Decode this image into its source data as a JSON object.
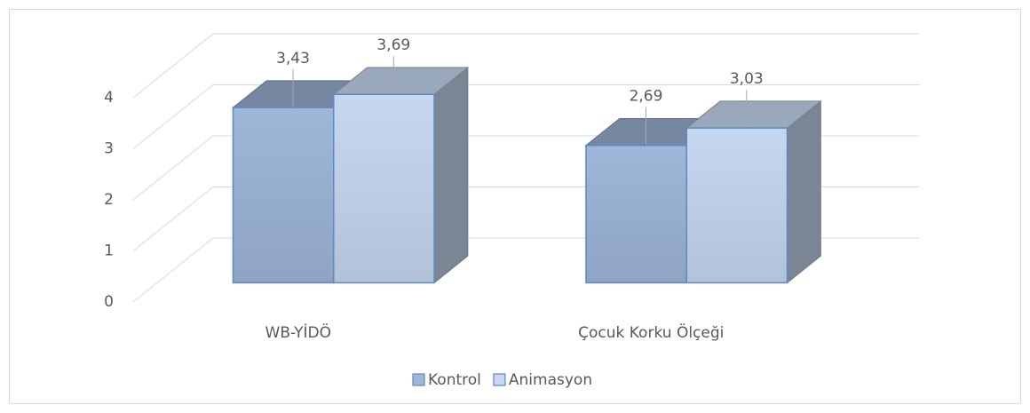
{
  "chart_data": {
    "type": "bar3d",
    "categories": [
      "WB-YİDÖ",
      "Çocuk Korku Ölçeği"
    ],
    "series": [
      {
        "name": "Kontrol",
        "color": "#9fb6d9",
        "values": [
          3.43,
          2.69
        ],
        "value_labels": [
          "3,43",
          "2,69"
        ]
      },
      {
        "name": "Animasyon",
        "color": "#c6d8f0",
        "values": [
          3.69,
          3.03
        ],
        "value_labels": [
          "3,69",
          "3,03"
        ]
      }
    ],
    "ylim": [
      0,
      4
    ],
    "yticks": [
      0,
      1,
      2,
      3,
      4
    ],
    "grid": true,
    "legend": "bottom"
  }
}
